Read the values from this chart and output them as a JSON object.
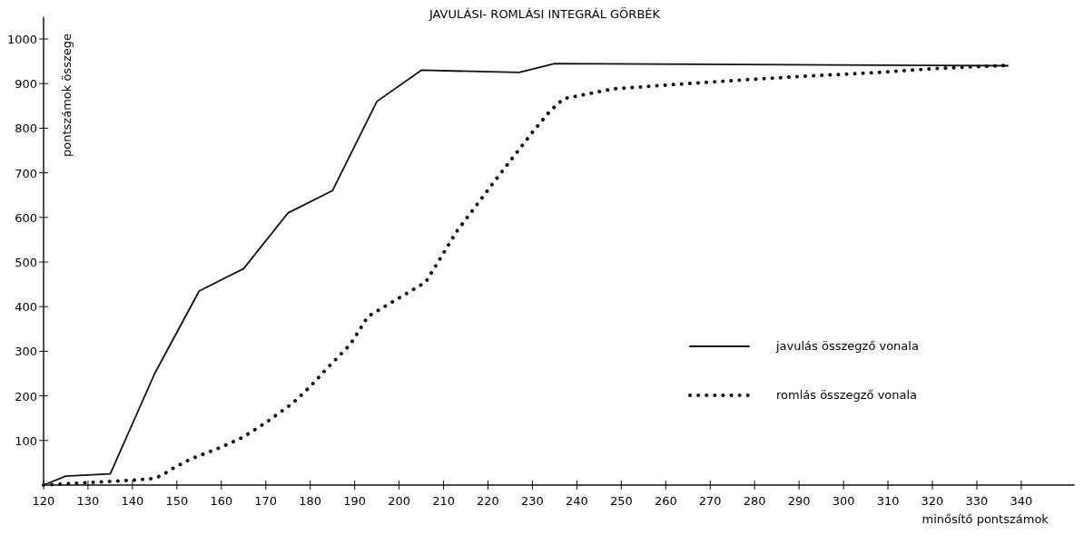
{
  "chart_data": {
    "type": "line",
    "title": "JAVULÁSI- ROMLÁSI  INTEGRÁL  GÖRBÉK",
    "xlabel": "minősítő  pontszámok",
    "ylabel": "pontszámok összege",
    "xlim": [
      120,
      352
    ],
    "xticks": [
      120,
      130,
      140,
      150,
      160,
      170,
      180,
      190,
      200,
      210,
      220,
      230,
      240,
      250,
      260,
      270,
      280,
      290,
      300,
      310,
      320,
      330,
      340
    ],
    "ylim": [
      0,
      1050
    ],
    "yticks": [
      100,
      200,
      300,
      400,
      500,
      600,
      700,
      800,
      900,
      1000
    ],
    "grid": false,
    "legend": "right",
    "marker": "none",
    "series": [
      {
        "name": "javulás összegző vonala",
        "color": "#111111",
        "line_style": "solid",
        "x": [
          120,
          125,
          135,
          145,
          155,
          165,
          175,
          185,
          195,
          205,
          227,
          235,
          337
        ],
        "values": [
          0,
          20,
          25,
          250,
          435,
          485,
          610,
          660,
          860,
          930,
          925,
          945,
          940
        ]
      },
      {
        "name": "romlás összegző vonala",
        "color": "#111111",
        "line_style": "dotted",
        "x": [
          120,
          125,
          140,
          145,
          147,
          149,
          153,
          160,
          165,
          170,
          176,
          180,
          184,
          189,
          193,
          206,
          213,
          221,
          230,
          234,
          237,
          248,
          262,
          277,
          292,
          308,
          321,
          337
        ],
        "values": [
          0,
          3,
          11,
          15,
          24,
          37,
          58,
          85,
          108,
          140,
          183,
          221,
          264,
          315,
          378,
          455,
          569,
          675,
          791,
          839,
          866,
          888,
          898,
          908,
          917,
          925,
          934,
          941
        ]
      }
    ]
  }
}
